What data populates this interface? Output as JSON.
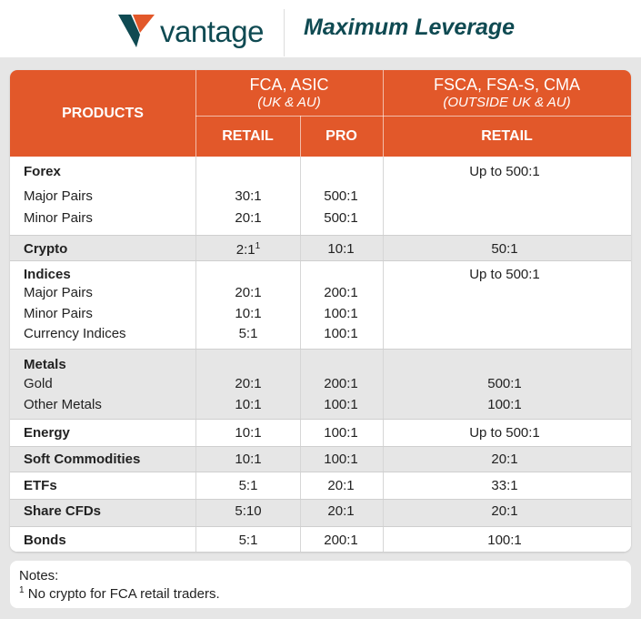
{
  "brand": {
    "name": "vantage",
    "accent": "#e2582a",
    "dark": "#0f4a52"
  },
  "title": "Maximum Leverage",
  "header": {
    "products": "PRODUCTS",
    "group1": "FCA, ASIC",
    "group1_sub": "(UK & AU)",
    "group2": "FSCA, FSA-S, CMA",
    "group2_sub": "(OUTSIDE UK & AU)",
    "retail": "RETAIL",
    "pro": "PRO",
    "retail2": "RETAIL"
  },
  "groups": [
    {
      "shade": false,
      "lines": [
        [
          "Forex",
          "",
          "",
          "Up to 500:1"
        ],
        [
          "Major Pairs",
          "30:1",
          "500:1",
          ""
        ],
        [
          "Minor Pairs",
          "20:1",
          "500:1",
          ""
        ]
      ]
    },
    {
      "shade": true,
      "lines": [
        [
          "Crypto",
          "2:1",
          "10:1",
          "50:1"
        ]
      ],
      "sup": "1"
    },
    {
      "shade": false,
      "lines": [
        [
          "Indices",
          "",
          "",
          "Up to 500:1"
        ],
        [
          "Major Pairs",
          "20:1",
          "200:1",
          ""
        ],
        [
          "Minor Pairs",
          "10:1",
          "100:1",
          ""
        ],
        [
          "Currency Indices",
          "5:1",
          "100:1",
          ""
        ]
      ]
    },
    {
      "shade": true,
      "lines": [
        [
          "Metals",
          "",
          "",
          ""
        ],
        [
          "Gold",
          "20:1",
          "200:1",
          "500:1"
        ],
        [
          "Other Metals",
          "10:1",
          "100:1",
          "100:1"
        ]
      ]
    },
    {
      "shade": false,
      "lines": [
        [
          "Energy",
          "10:1",
          "100:1",
          "Up to 500:1"
        ]
      ]
    },
    {
      "shade": true,
      "lines": [
        [
          "Soft Commodities",
          "10:1",
          "100:1",
          "20:1"
        ]
      ]
    },
    {
      "shade": false,
      "lines": [
        [
          "ETFs",
          "5:1",
          "20:1",
          "33:1"
        ]
      ]
    },
    {
      "shade": true,
      "lines": [
        [
          "Share CFDs",
          "5:10",
          "20:1",
          "20:1"
        ]
      ]
    },
    {
      "shade": false,
      "lines": [
        [
          "Bonds",
          "5:1",
          "200:1",
          "100:1"
        ]
      ]
    }
  ],
  "notes": {
    "title": "Notes:",
    "sup": "1",
    "text": "No crypto for FCA retail traders."
  }
}
